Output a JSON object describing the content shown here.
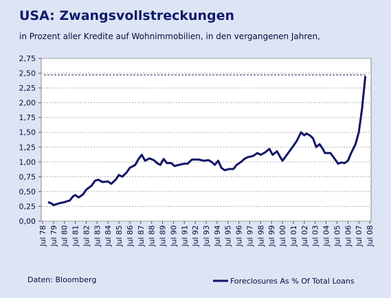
{
  "chart_data": {
    "type": "line",
    "title": "USA: Zwangsvollstreckungen",
    "subtitle": "in Prozent aller Kredite auf Wohnimmobilien, in den vergangenen Jahren,",
    "source": "Daten: Bloomberg",
    "grid": true,
    "legend": "bottom-right",
    "reference_line": 2.47,
    "xlim": [
      1978.5,
      2008.5
    ],
    "xticks": [
      {
        "value": 1978.5,
        "label": "Jul 78"
      },
      {
        "value": 1979.5,
        "label": "Jul 79"
      },
      {
        "value": 1980.5,
        "label": "Jul 80"
      },
      {
        "value": 1981.5,
        "label": "Jul 81"
      },
      {
        "value": 1982.5,
        "label": "Jul 82"
      },
      {
        "value": 1983.5,
        "label": "Jul 83"
      },
      {
        "value": 1984.5,
        "label": "Jul 84"
      },
      {
        "value": 1985.5,
        "label": "Jul 85"
      },
      {
        "value": 1986.5,
        "label": "Jul 86"
      },
      {
        "value": 1987.5,
        "label": "Jul 87"
      },
      {
        "value": 1988.5,
        "label": "Jul 88"
      },
      {
        "value": 1989.5,
        "label": "Jul 89"
      },
      {
        "value": 1990.5,
        "label": "Jul 90"
      },
      {
        "value": 1991.5,
        "label": "Jul 91"
      },
      {
        "value": 1992.5,
        "label": "Jul 92"
      },
      {
        "value": 1993.5,
        "label": "Jul 93"
      },
      {
        "value": 1994.5,
        "label": "Jul 94"
      },
      {
        "value": 1995.5,
        "label": "Jul 95"
      },
      {
        "value": 1996.5,
        "label": "Jul 96"
      },
      {
        "value": 1997.5,
        "label": "Jul 97"
      },
      {
        "value": 1998.5,
        "label": "Jul 98"
      },
      {
        "value": 1999.5,
        "label": "Jul 99"
      },
      {
        "value": 2000.5,
        "label": "Jul 00"
      },
      {
        "value": 2001.5,
        "label": "Jul 01"
      },
      {
        "value": 2002.5,
        "label": "Jul 02"
      },
      {
        "value": 2003.5,
        "label": "Jul 03"
      },
      {
        "value": 2004.5,
        "label": "Jul 04"
      },
      {
        "value": 2005.5,
        "label": "Jul 05"
      },
      {
        "value": 2006.5,
        "label": "Jul 06"
      },
      {
        "value": 2007.5,
        "label": "Jul 07"
      },
      {
        "value": 2008.5,
        "label": "Jul 08"
      }
    ],
    "ylim": [
      0,
      2.75
    ],
    "yticks": [
      {
        "value": 0,
        "label": "0,00"
      },
      {
        "value": 0.25,
        "label": "0,25"
      },
      {
        "value": 0.5,
        "label": "0,50"
      },
      {
        "value": 0.75,
        "label": "0,75"
      },
      {
        "value": 1,
        "label": "1,00"
      },
      {
        "value": 1.25,
        "label": "1,25"
      },
      {
        "value": 1.5,
        "label": "1,50"
      },
      {
        "value": 1.75,
        "label": "1,75"
      },
      {
        "value": 2,
        "label": "2,00"
      },
      {
        "value": 2.25,
        "label": "2,25"
      },
      {
        "value": 2.5,
        "label": "2,50"
      },
      {
        "value": 2.75,
        "label": "2,75"
      }
    ],
    "x": [
      1979.0,
      1979.3,
      1979.5,
      1980.0,
      1980.5,
      1981.0,
      1981.3,
      1981.5,
      1981.8,
      1982.2,
      1982.5,
      1983.0,
      1983.3,
      1983.6,
      1984.0,
      1984.5,
      1984.8,
      1985.2,
      1985.5,
      1985.8,
      1986.2,
      1986.5,
      1987.0,
      1987.3,
      1987.6,
      1987.9,
      1988.3,
      1988.7,
      1989.0,
      1989.3,
      1989.6,
      1989.9,
      1990.3,
      1990.6,
      1991.0,
      1991.5,
      1991.8,
      1992.2,
      1992.8,
      1993.3,
      1993.7,
      1994.0,
      1994.3,
      1994.6,
      1994.9,
      1995.2,
      1995.6,
      1996.0,
      1996.3,
      1996.7,
      1997.0,
      1997.3,
      1997.8,
      1998.2,
      1998.5,
      1998.9,
      1999.3,
      1999.6,
      2000.0,
      2000.3,
      2000.5,
      2000.9,
      2001.3,
      2001.8,
      2002.2,
      2002.5,
      2002.7,
      2003.0,
      2003.3,
      2003.6,
      2003.9,
      2004.2,
      2004.4,
      2004.9,
      2005.3,
      2005.6,
      2005.9,
      2006.2,
      2006.5,
      2006.8,
      2007.2,
      2007.5,
      2007.8,
      2008.1
    ],
    "series": [
      {
        "name": "Foreclosures As % Of Total Loans",
        "color": "#0f1566",
        "values": [
          0.32,
          0.3,
          0.27,
          0.3,
          0.32,
          0.35,
          0.42,
          0.44,
          0.4,
          0.45,
          0.53,
          0.6,
          0.68,
          0.7,
          0.66,
          0.67,
          0.63,
          0.7,
          0.78,
          0.75,
          0.82,
          0.9,
          0.95,
          1.05,
          1.12,
          1.02,
          1.06,
          1.03,
          0.98,
          0.95,
          1.05,
          0.98,
          0.98,
          0.93,
          0.95,
          0.97,
          0.97,
          1.04,
          1.04,
          1.02,
          1.03,
          1.0,
          0.95,
          1.02,
          0.9,
          0.86,
          0.88,
          0.88,
          0.95,
          1.0,
          1.05,
          1.08,
          1.1,
          1.15,
          1.12,
          1.16,
          1.22,
          1.12,
          1.18,
          1.08,
          1.02,
          1.12,
          1.22,
          1.35,
          1.5,
          1.45,
          1.48,
          1.45,
          1.4,
          1.25,
          1.3,
          1.22,
          1.15,
          1.15,
          1.05,
          0.97,
          0.99,
          0.98,
          1.02,
          1.15,
          1.3,
          1.5,
          1.9,
          2.45
        ]
      }
    ]
  }
}
